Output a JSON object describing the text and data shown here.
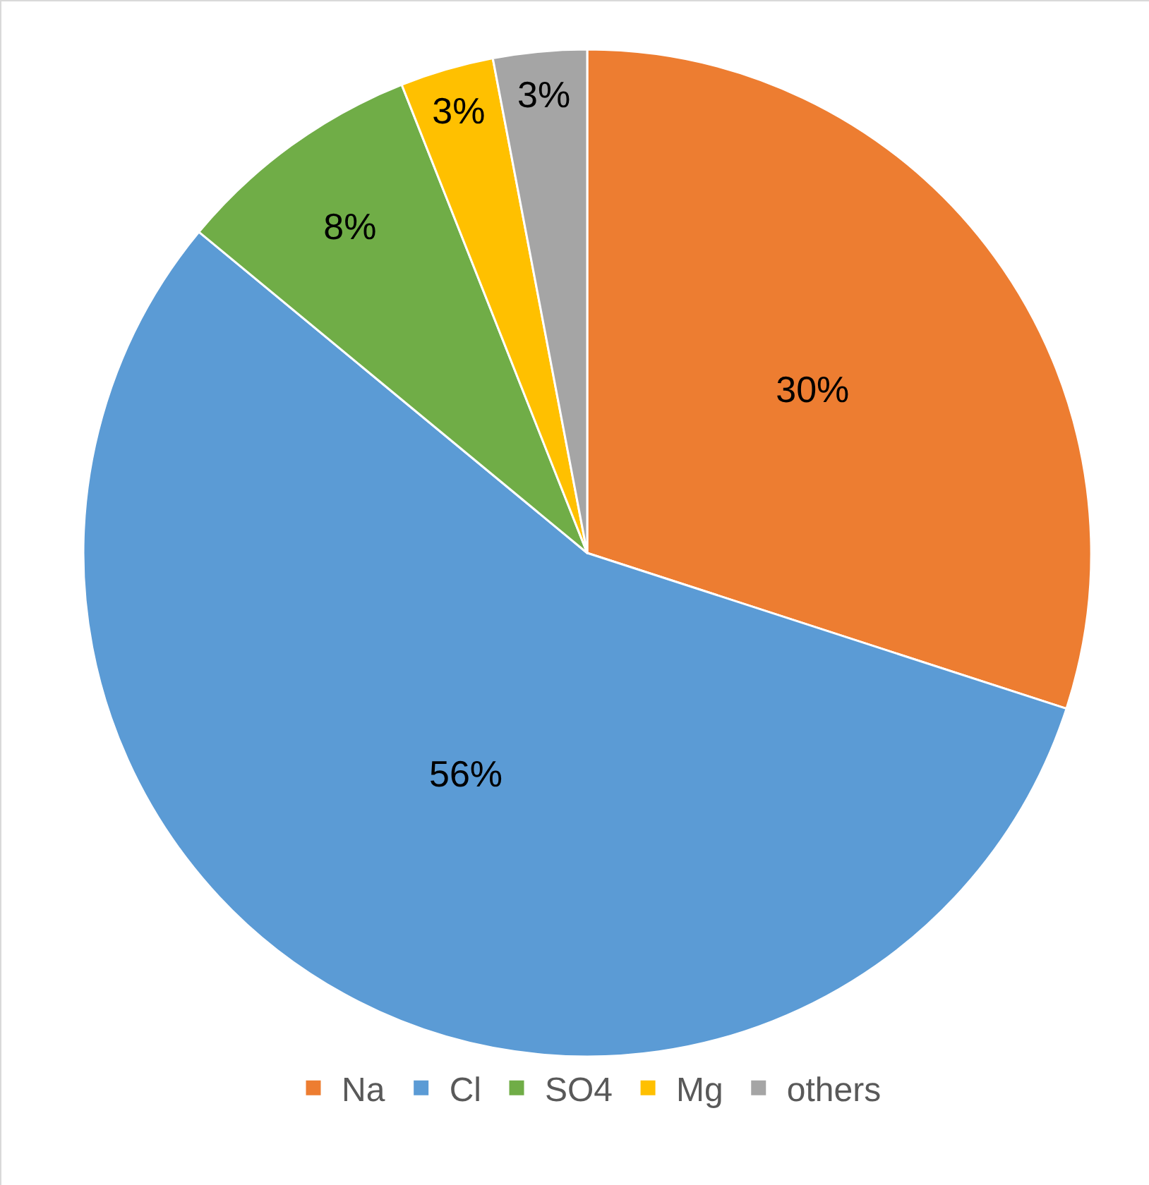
{
  "chart_data": {
    "type": "pie",
    "categories": [
      "Na",
      "Cl",
      "SO4",
      "Mg",
      "others"
    ],
    "values": [
      30,
      56,
      8,
      3,
      3
    ],
    "colors": [
      "#ed7d31",
      "#5b9bd5",
      "#70ad47",
      "#ffc000",
      "#a5a5a5"
    ],
    "value_labels": [
      "30%",
      "56%",
      "8%",
      "3%",
      "3%"
    ],
    "legend": "bottom"
  }
}
